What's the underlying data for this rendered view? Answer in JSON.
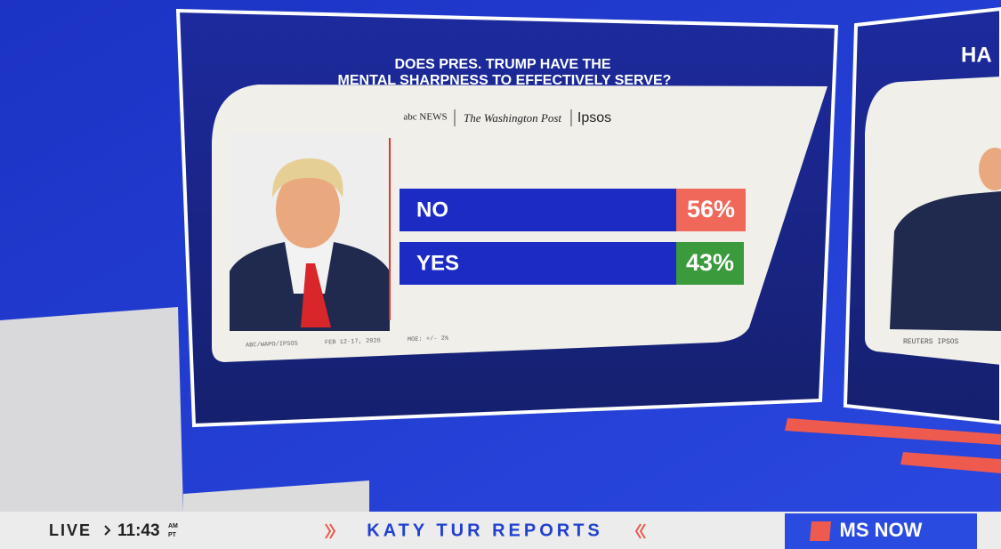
{
  "graphic": {
    "title": [
      "DOES PRES. TRUMP HAVE THE",
      "MENTAL SHARPNESS TO EFFECTIVELY SERVE?"
    ],
    "sources": [
      "abc NEWS",
      "The Washington Post",
      "Ipsos"
    ],
    "results": [
      {
        "label": "NO",
        "value": "56%"
      },
      {
        "label": "YES",
        "value": "43%"
      }
    ],
    "footnote": [
      "ABC/WAPO/IPSOS",
      "FEB 12-17, 2026",
      "MOE: +/- 2%"
    ]
  },
  "side_panel": {
    "title": "HA",
    "footnote": "REUTERS IPSOS"
  },
  "lower_third": {
    "live": "LIVE",
    "time": "11:43",
    "am": "AM",
    "tz": "PT",
    "show": "KATY TUR REPORTS",
    "network": "MS NOW"
  }
}
